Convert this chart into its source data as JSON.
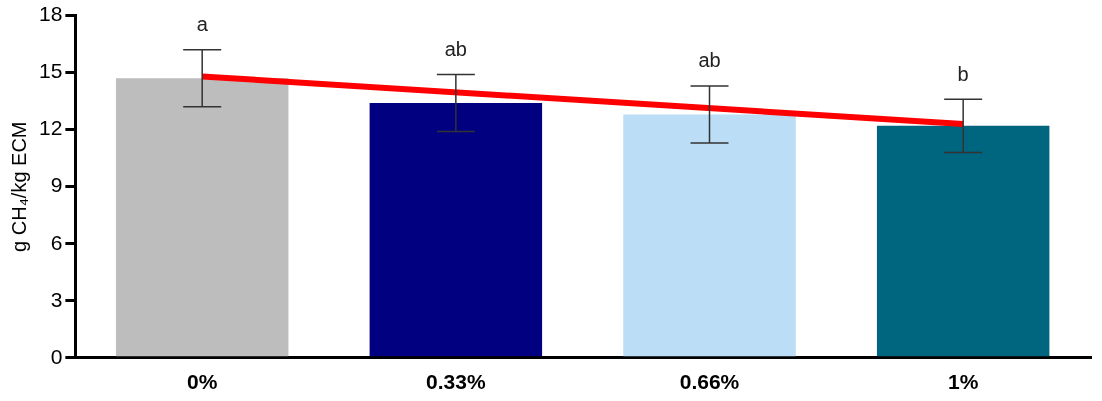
{
  "chart_data": {
    "type": "bar",
    "ylabel": "g CH₄/kg ECM",
    "categories": [
      "0%",
      "0.33%",
      "0.66%",
      "1%"
    ],
    "series": [
      {
        "colors": [
          "#bdbdbd",
          "#000080",
          "#bbddf5",
          "#00667f"
        ],
        "values": [
          14.7,
          13.4,
          12.8,
          12.2
        ],
        "errors": [
          1.5,
          1.5,
          1.5,
          1.4
        ]
      },
      {
        "type": "line",
        "color": "#ff0000",
        "x": [
          "0%",
          "1%"
        ],
        "values": [
          14.8,
          12.3
        ],
        "marker": "none"
      }
    ],
    "ylim": [
      0,
      18
    ],
    "yticks": [
      0,
      3,
      6,
      9,
      12,
      15,
      18
    ],
    "grid": false,
    "legend": false,
    "annotations": [
      "a",
      "ab",
      "ab",
      "b"
    ]
  }
}
